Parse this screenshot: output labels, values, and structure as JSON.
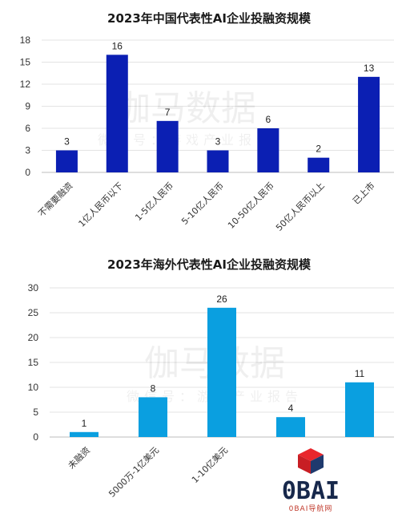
{
  "chart_data": [
    {
      "type": "bar",
      "title": "2023年中国代表性AI企业投融资规模",
      "categories": [
        "不需要融资",
        "1亿人民币以下",
        "1-5亿人民币",
        "5-10亿人民币",
        "10-50亿人民币",
        "50亿人民币以上",
        "已上市"
      ],
      "values": [
        3,
        16,
        7,
        3,
        6,
        2,
        13
      ],
      "ylim": [
        0,
        18
      ],
      "yticks": [
        0,
        3,
        6,
        9,
        12,
        15,
        18
      ],
      "color": "#0b1fb3",
      "grid": true
    },
    {
      "type": "bar",
      "title": "2023年海外代表性AI企业投融资规模",
      "categories": [
        "未融资",
        "5000万-1亿美元",
        "1-10亿美元",
        "",
        ""
      ],
      "values": [
        1,
        8,
        26,
        4,
        11
      ],
      "ylim": [
        0,
        30
      ],
      "yticks": [
        0,
        5,
        10,
        15,
        20,
        25,
        30
      ],
      "color": "#0a9fe0",
      "grid": true
    }
  ],
  "watermark": {
    "main": "伽马数据",
    "sub": "微信号：游戏产业报告"
  },
  "logo": {
    "text": "0BAI",
    "subtext": "0BAI导航网",
    "colors": [
      "#e8262c",
      "#1f3a6e"
    ]
  }
}
